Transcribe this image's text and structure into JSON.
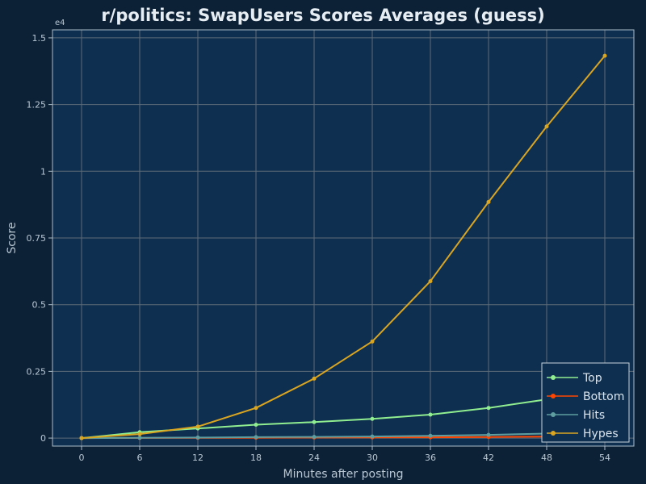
{
  "chart_data": {
    "type": "line",
    "title": "r/politics: SwapUsers Scores Averages (guess)",
    "xlabel": "Minutes after posting",
    "ylabel": "Score",
    "y_exponent_label": "e4",
    "x": [
      0,
      6,
      12,
      18,
      24,
      30,
      36,
      42,
      48,
      54
    ],
    "xlim": [
      -3,
      57
    ],
    "ylim": [
      -300,
      15300
    ],
    "y_scale_factor": 10000,
    "x_ticks": [
      0,
      6,
      12,
      18,
      24,
      30,
      36,
      42,
      48,
      54
    ],
    "x_tick_labels": [
      "0",
      "6",
      "12",
      "18",
      "24",
      "30",
      "36",
      "42",
      "48",
      "54"
    ],
    "y_ticks": [
      0,
      2500,
      5000,
      7500,
      10000,
      12500,
      15000
    ],
    "y_tick_labels": [
      "0",
      "0.25",
      "0.5",
      "0.75",
      "1",
      "1.25",
      "1.5"
    ],
    "grid": true,
    "legend_position": "bottom-right",
    "series": [
      {
        "name": "Top",
        "color": "#90ee90",
        "values": [
          0,
          220,
          360,
          500,
          600,
          720,
          880,
          1130,
          1450,
          1750
        ]
      },
      {
        "name": "Bottom",
        "color": "#ff4500",
        "values": [
          0,
          5,
          10,
          15,
          20,
          25,
          30,
          40,
          55,
          70
        ]
      },
      {
        "name": "Hits",
        "color": "#5f9ea0",
        "values": [
          0,
          10,
          20,
          35,
          45,
          60,
          85,
          120,
          170,
          230
        ]
      },
      {
        "name": "Hypes",
        "color": "#daa520",
        "values": [
          0,
          150,
          430,
          1130,
          2230,
          3620,
          5880,
          8850,
          11680,
          14330
        ]
      }
    ]
  }
}
